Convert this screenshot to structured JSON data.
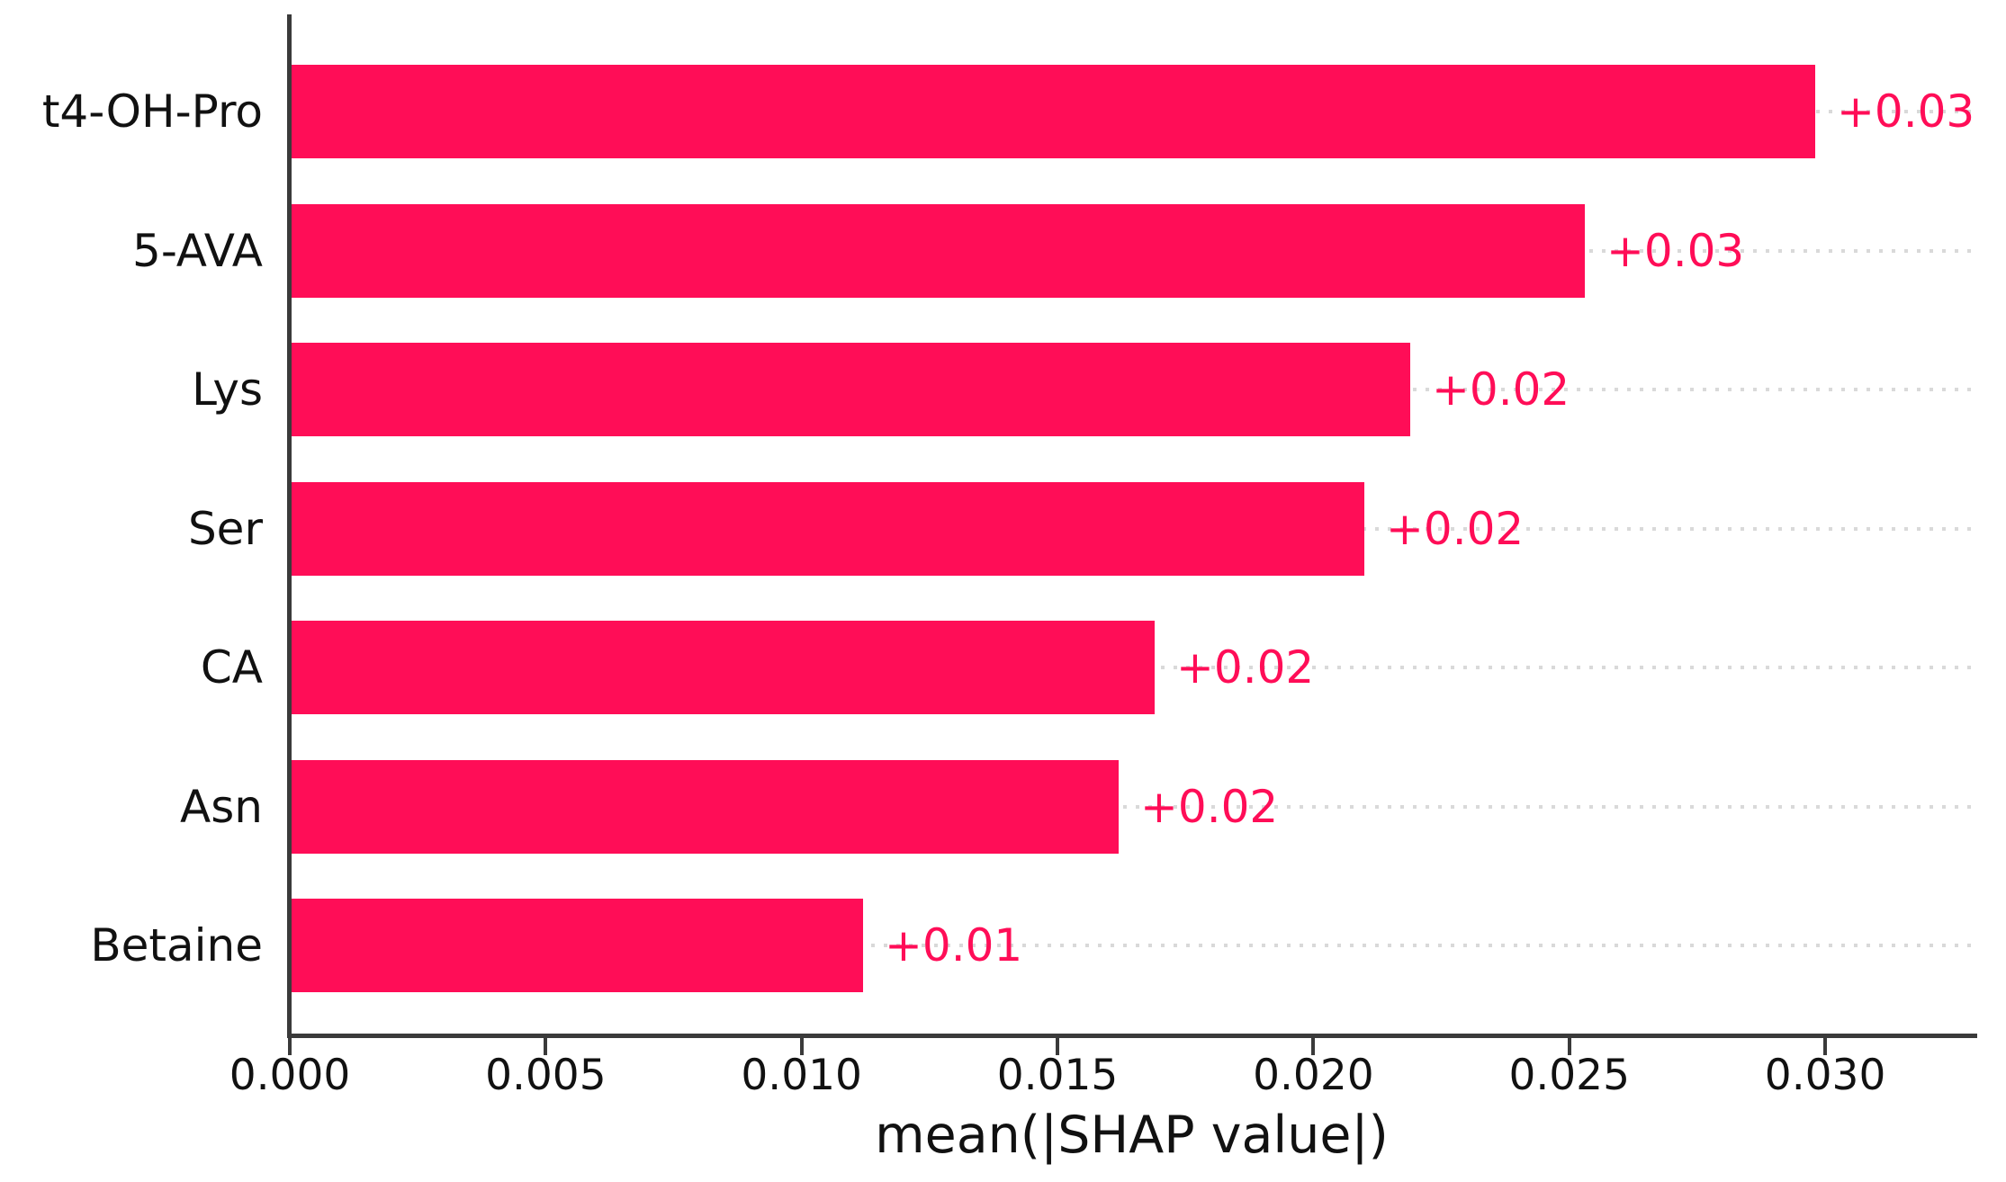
{
  "chart_data": {
    "type": "bar",
    "orientation": "horizontal",
    "title": "",
    "xlabel": "mean(|SHAP value|)",
    "ylabel": "",
    "categories": [
      "t4-OH-Pro",
      "5-AVA",
      "Lys",
      "Ser",
      "CA",
      "Asn",
      "Betaine"
    ],
    "values": [
      0.0298,
      0.0253,
      0.0219,
      0.021,
      0.0169,
      0.0162,
      0.0112
    ],
    "bar_labels": [
      "+0.03",
      "+0.03",
      "+0.02",
      "+0.02",
      "+0.02",
      "+0.02",
      "+0.01"
    ],
    "x_ticks": [
      {
        "value": 0.0,
        "label": "0.000"
      },
      {
        "value": 0.005,
        "label": "0.005"
      },
      {
        "value": 0.01,
        "label": "0.010"
      },
      {
        "value": 0.015,
        "label": "0.015"
      },
      {
        "value": 0.02,
        "label": "0.020"
      },
      {
        "value": 0.025,
        "label": "0.025"
      },
      {
        "value": 0.03,
        "label": "0.030"
      }
    ],
    "xlim": [
      0,
      0.0329
    ],
    "grid": "dotted horizontal line at each bar row",
    "legend": "none",
    "bar_color": "#ff0d57",
    "value_label_color": "#ff0d57",
    "axis_color": "#3a3a3a",
    "gridline_color": "#d9d9d9",
    "text_color": "#111111"
  }
}
